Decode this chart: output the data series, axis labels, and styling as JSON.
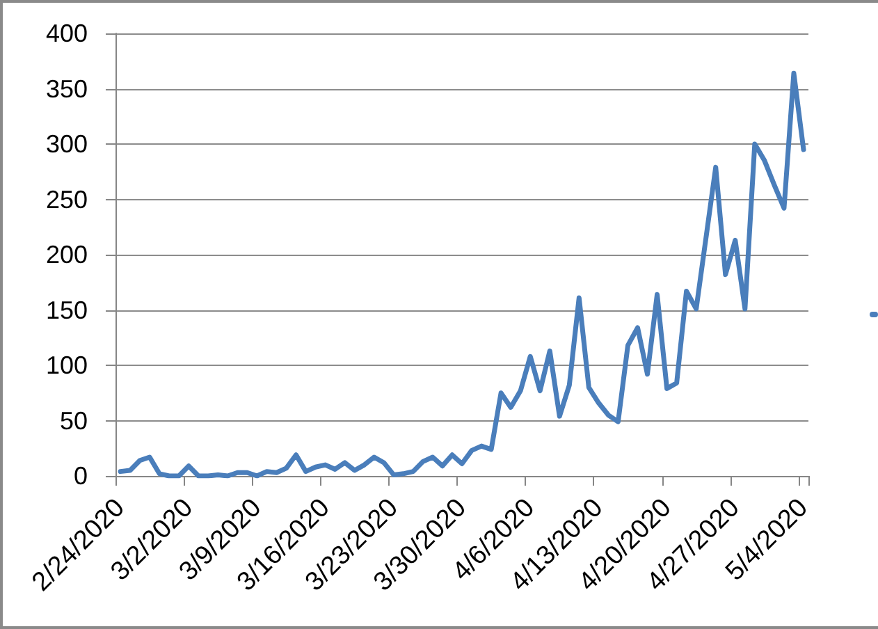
{
  "chart_data": {
    "type": "line",
    "categories": [
      "2/24/2020",
      null,
      null,
      null,
      null,
      null,
      null,
      "3/2/2020",
      null,
      null,
      null,
      null,
      null,
      null,
      "3/9/2020",
      null,
      null,
      null,
      null,
      null,
      null,
      "3/16/2020",
      null,
      null,
      null,
      null,
      null,
      null,
      "3/23/2020",
      null,
      null,
      null,
      null,
      null,
      null,
      "3/30/2020",
      null,
      null,
      null,
      null,
      null,
      null,
      "4/6/2020",
      null,
      null,
      null,
      null,
      null,
      null,
      "4/13/2020",
      null,
      null,
      null,
      null,
      null,
      null,
      "4/20/2020",
      null,
      null,
      null,
      null,
      null,
      null,
      "4/27/2020",
      null,
      null,
      null,
      null,
      null,
      null,
      "5/4/2020"
    ],
    "series": [
      {
        "color": "#4a7ebb",
        "values": [
          4,
          5,
          14,
          17,
          2,
          0,
          0,
          9,
          0,
          0,
          1,
          0,
          3,
          3,
          0,
          4,
          3,
          7,
          19,
          4,
          8,
          10,
          6,
          12,
          5,
          10,
          17,
          12,
          1,
          2,
          4,
          13,
          17,
          9,
          19,
          11,
          23,
          27,
          24,
          75,
          62,
          77,
          108,
          77,
          113,
          54,
          82,
          161,
          80,
          66,
          55,
          49,
          118,
          134,
          92,
          164,
          79,
          84,
          167,
          151,
          215,
          279,
          182,
          213,
          151,
          300,
          285,
          263,
          242,
          364,
          295
        ]
      }
    ],
    "ylim": [
      0,
      400
    ],
    "yticks": [
      0,
      50,
      100,
      150,
      200,
      250,
      300,
      350,
      400
    ],
    "grid": "y",
    "marker": "none",
    "line_style": "solid"
  }
}
